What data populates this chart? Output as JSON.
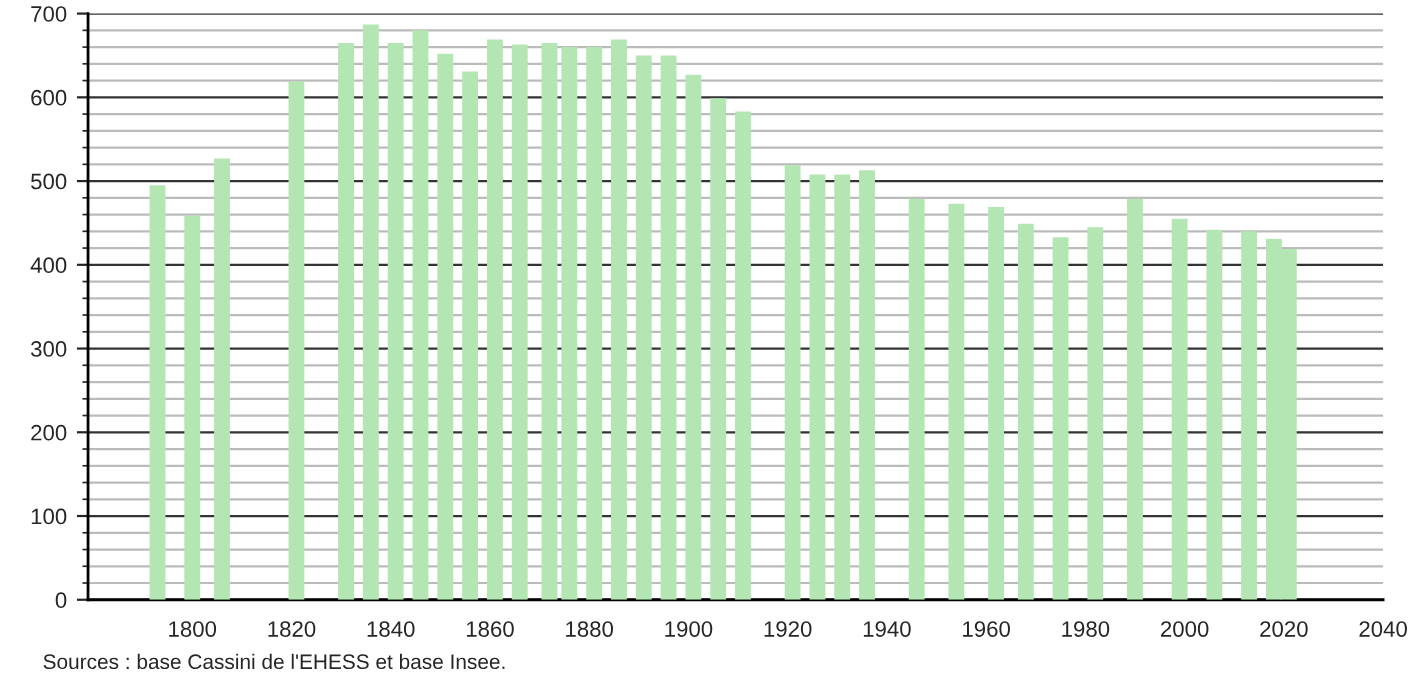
{
  "chart_data": {
    "type": "bar",
    "x": [
      1793,
      1800,
      1806,
      1821,
      1831,
      1836,
      1841,
      1846,
      1851,
      1856,
      1861,
      1866,
      1872,
      1876,
      1881,
      1886,
      1891,
      1896,
      1901,
      1906,
      1911,
      1921,
      1926,
      1931,
      1936,
      1946,
      1954,
      1962,
      1968,
      1975,
      1982,
      1990,
      1999,
      2006,
      2013,
      2018,
      2021
    ],
    "values": [
      495,
      459,
      527,
      619,
      665,
      687,
      665,
      680,
      652,
      631,
      669,
      663,
      665,
      660,
      660,
      669,
      650,
      650,
      627,
      599,
      583,
      519,
      508,
      508,
      513,
      479,
      473,
      469,
      449,
      433,
      445,
      479,
      455,
      442,
      440,
      431,
      419
    ],
    "color": "#b3e6b3",
    "xlim": [
      1779,
      2040
    ],
    "xticks": [
      1800,
      1820,
      1840,
      1860,
      1880,
      1900,
      1920,
      1940,
      1960,
      1980,
      2000,
      2020,
      2040
    ],
    "ylim": [
      0,
      700
    ],
    "yticks": [
      0,
      100,
      200,
      300,
      400,
      500,
      600,
      700
    ],
    "grid": "y",
    "annotations": [
      "Sources : base Cassini de l'EHESS et base Insee."
    ]
  }
}
